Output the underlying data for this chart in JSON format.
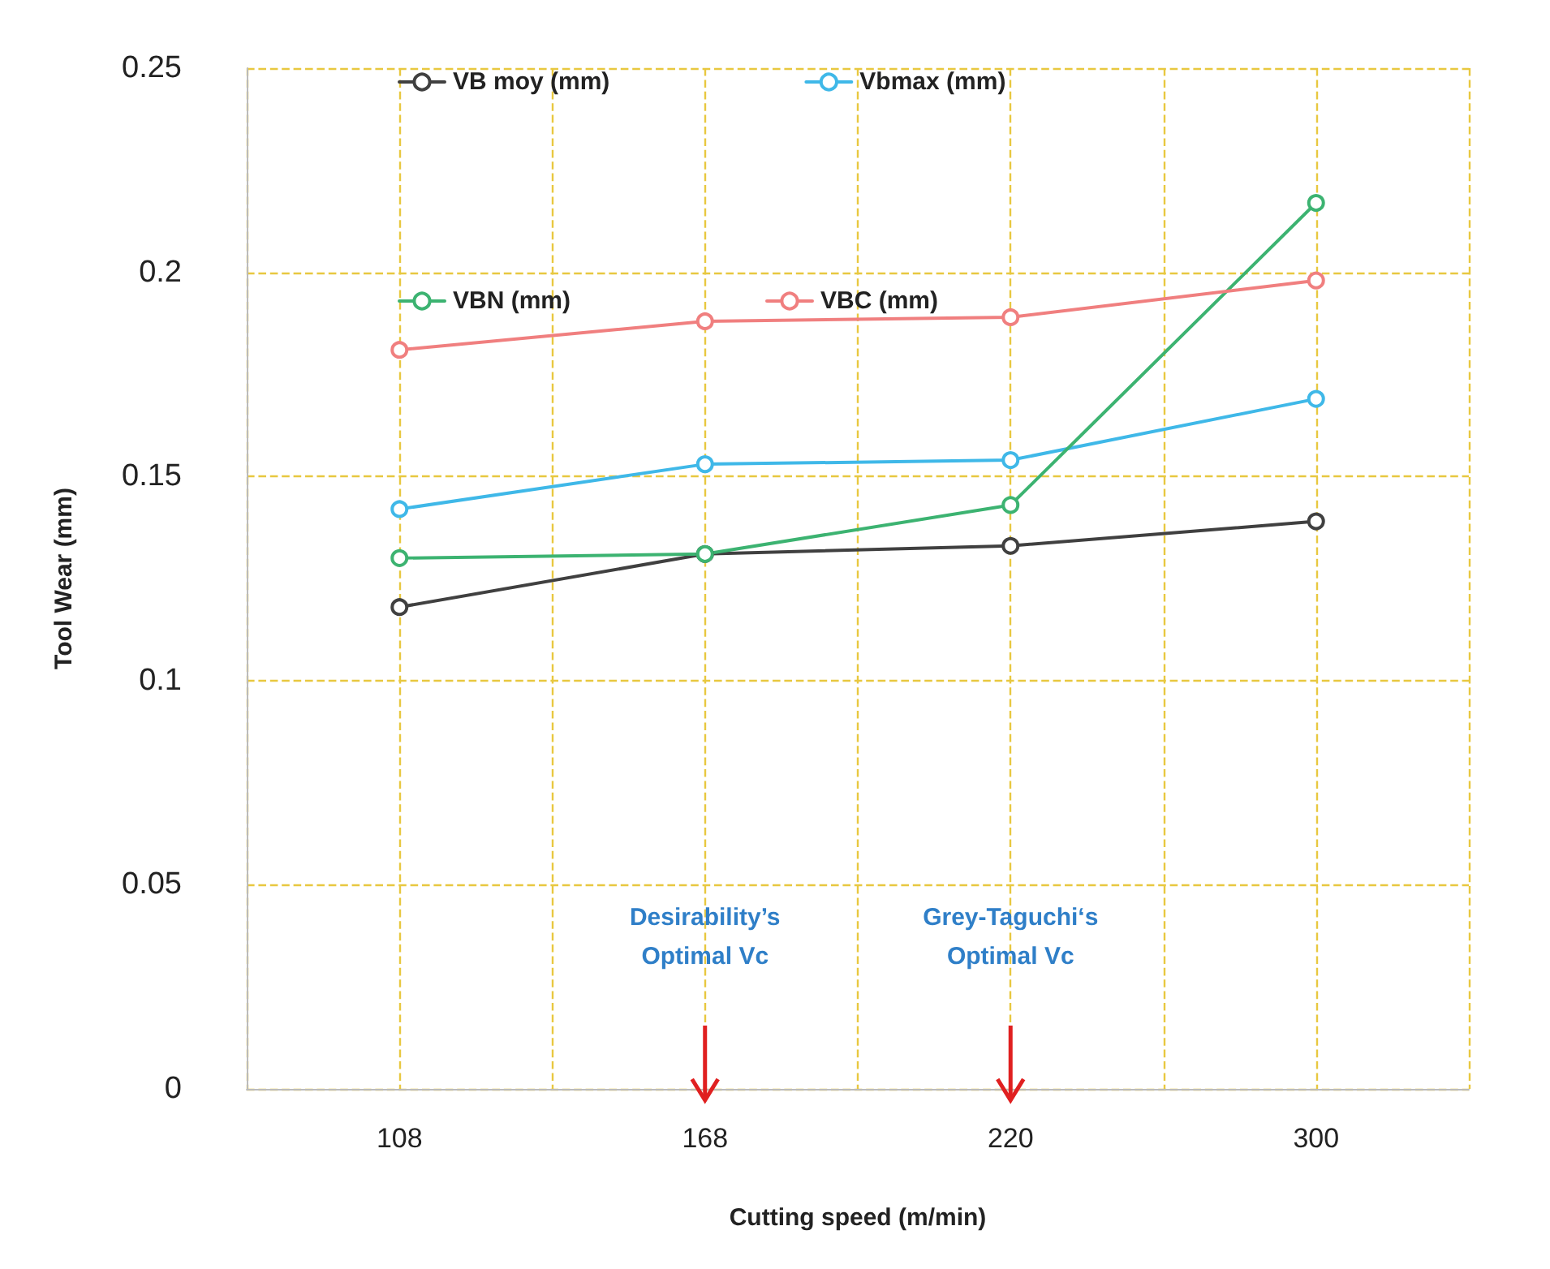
{
  "chart_data": {
    "type": "line",
    "xlabel": "Cutting speed (m/min)",
    "ylabel": "Tool Wear (mm)",
    "categories": [
      "108",
      "168",
      "220",
      "300"
    ],
    "series": [
      {
        "name": "VB moy (mm)",
        "color": "#404040",
        "values": [
          0.118,
          0.131,
          0.133,
          0.139
        ]
      },
      {
        "name": "Vbmax (mm)",
        "color": "#3fb8e8",
        "values": [
          0.142,
          0.153,
          0.154,
          0.169
        ]
      },
      {
        "name": "VBN (mm)",
        "color": "#3cb371",
        "values": [
          0.13,
          0.131,
          0.143,
          0.217
        ]
      },
      {
        "name": "VBC (mm)",
        "color": "#f07f7f",
        "values": [
          0.181,
          0.188,
          0.189,
          0.198
        ]
      }
    ],
    "ylim": [
      0,
      0.25
    ],
    "yticks": [
      0,
      0.05,
      0.1,
      0.15,
      0.2,
      0.25
    ],
    "grid": true,
    "legend": "top",
    "marker": "circle",
    "line_style": "solid",
    "annotations": [
      "Desirability’s Optimal Vc",
      "Grey-Taguchi‘s Optimal Vc"
    ]
  }
}
